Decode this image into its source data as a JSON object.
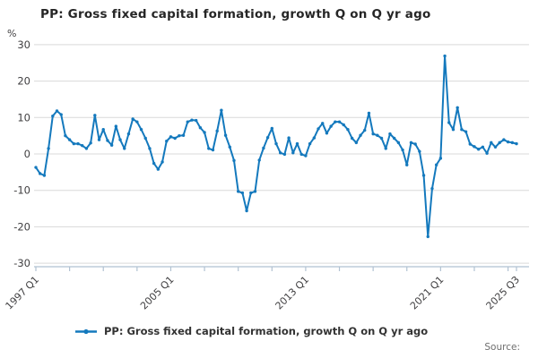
{
  "header": {
    "title": "PP: Gross fixed capital formation, growth Q on Q yr ago"
  },
  "y_axis": {
    "unit_label": "%",
    "tick_labels": [
      30,
      20,
      10,
      0,
      -10,
      -20,
      -30
    ],
    "min": -30,
    "max": 30
  },
  "x_axis": {
    "labeled_ticks": [
      {
        "quarter_index": 0,
        "label": "1997 Q1"
      },
      {
        "quarter_index": 32,
        "label": "2005 Q1"
      },
      {
        "quarter_index": 64,
        "label": "2013 Q1"
      },
      {
        "quarter_index": 96,
        "label": "2021 Q1"
      },
      {
        "quarter_index": 114,
        "label": "2025 Q3"
      }
    ],
    "minor_tick_quarter_indices": [
      0,
      8,
      16,
      24,
      32,
      40,
      48,
      56,
      64,
      72,
      80,
      88,
      96,
      104,
      112,
      114
    ]
  },
  "legend": {
    "label": "PP: Gross fixed capital formation, growth Q on Q yr ago"
  },
  "footer": {
    "source_label": "Source:"
  },
  "colors": {
    "line": "#1479bd",
    "grid": "#d9d9d9",
    "axis": "#b1c2d2",
    "title_text": "#262626",
    "tick_text": "#414042",
    "legend_text": "#333333",
    "source_text": "#6e6e6e"
  },
  "chart_data": {
    "type": "line",
    "title": "PP: Gross fixed capital formation, growth Q on Q yr ago",
    "ylabel": "%",
    "ylim": [
      -30,
      30
    ],
    "x_start": "1997 Q1",
    "x_end": "2025 Q3",
    "frequency": "quarterly",
    "grid": true,
    "legend_position": "bottom",
    "marker": "point",
    "series": [
      {
        "name": "PP: Gross fixed capital formation, growth Q on Q yr ago",
        "values": [
          -3.7,
          -5.4,
          -5.9,
          1.5,
          10.4,
          11.8,
          10.8,
          5.0,
          3.9,
          2.8,
          2.8,
          2.3,
          1.5,
          3.0,
          10.6,
          3.9,
          6.7,
          3.7,
          2.4,
          7.6,
          3.9,
          1.5,
          5.5,
          9.6,
          8.8,
          6.7,
          4.3,
          1.5,
          -2.6,
          -4.2,
          -2.2,
          3.5,
          4.7,
          4.3,
          5.0,
          5.1,
          8.8,
          9.3,
          9.2,
          7.2,
          5.9,
          1.5,
          1.1,
          6.3,
          12.0,
          5.1,
          1.9,
          -1.8,
          -10.3,
          -10.7,
          -15.6,
          -10.7,
          -10.3,
          -1.7,
          1.6,
          4.5,
          7.0,
          2.8,
          0.3,
          -0.1,
          4.4,
          0.3,
          2.8,
          -0.1,
          -0.5,
          2.8,
          4.4,
          6.9,
          8.4,
          5.7,
          7.6,
          8.8,
          8.8,
          8.0,
          6.7,
          4.3,
          3.1,
          5.1,
          6.5,
          11.2,
          5.5,
          5.1,
          4.3,
          1.5,
          5.5,
          4.3,
          3.1,
          1.1,
          -3.0,
          3.1,
          2.7,
          0.7,
          -5.9,
          -22.7,
          -9.5,
          -3.0,
          -1.2,
          26.9,
          8.6,
          6.7,
          12.7,
          6.7,
          6.1,
          2.7,
          2.0,
          1.3,
          1.9,
          0.2,
          3.1,
          1.9,
          3.1,
          3.9,
          3.3,
          3.1,
          2.8
        ]
      }
    ]
  }
}
